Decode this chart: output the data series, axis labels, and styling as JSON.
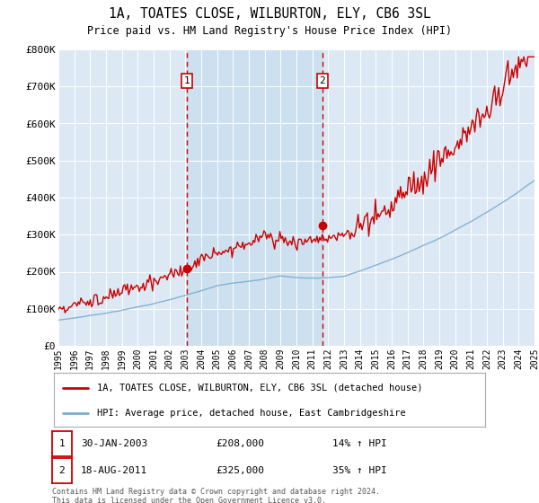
{
  "title": "1A, TOATES CLOSE, WILBURTON, ELY, CB6 3SL",
  "subtitle": "Price paid vs. HM Land Registry's House Price Index (HPI)",
  "bg_color": "#dce9f5",
  "plot_bg_color": "#dce9f5",
  "x_start_year": 1995,
  "x_end_year": 2025,
  "y_ticks": [
    0,
    100000,
    200000,
    300000,
    400000,
    500000,
    600000,
    700000,
    800000
  ],
  "y_labels": [
    "£0",
    "£100K",
    "£200K",
    "£300K",
    "£400K",
    "£500K",
    "£600K",
    "£700K",
    "£800K"
  ],
  "sale1_date": 2003.08,
  "sale1_price": 208000,
  "sale1_label": "1",
  "sale2_date": 2011.63,
  "sale2_price": 325000,
  "sale2_label": "2",
  "legend_line1": "1A, TOATES CLOSE, WILBURTON, ELY, CB6 3SL (detached house)",
  "legend_line2": "HPI: Average price, detached house, East Cambridgeshire",
  "table_row1": [
    "1",
    "30-JAN-2003",
    "£208,000",
    "14% ↑ HPI"
  ],
  "table_row2": [
    "2",
    "18-AUG-2011",
    "£325,000",
    "35% ↑ HPI"
  ],
  "footer": "Contains HM Land Registry data © Crown copyright and database right 2024.\nThis data is licensed under the Open Government Licence v3.0.",
  "line_color_red": "#cc0000",
  "line_color_blue": "#7aadcf",
  "shade_color": "#ccdff0",
  "dashed_color": "#cc0000"
}
